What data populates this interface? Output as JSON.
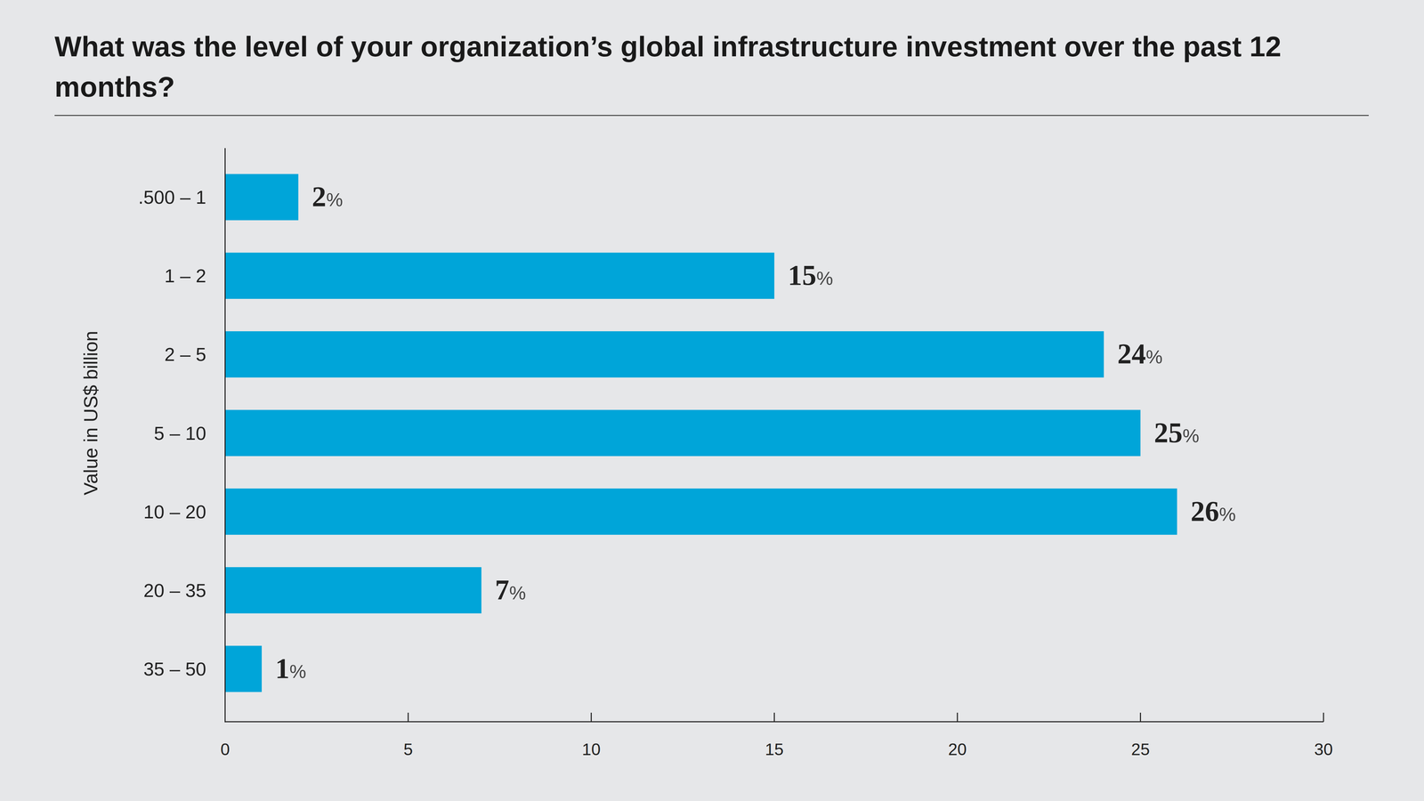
{
  "chart_data": {
    "type": "bar",
    "orientation": "horizontal",
    "title": "What was the level of your organization’s global infrastructure investment over the past 12 months?",
    "y_label": "Value in US$ billion",
    "categories": [
      ".500 – 1",
      "1 – 2",
      "2 – 5",
      "5 – 10",
      "10 – 20",
      "20 – 35",
      "35 – 50"
    ],
    "values": [
      2,
      15,
      24,
      25,
      26,
      7,
      1
    ],
    "value_labels": [
      "2%",
      "15%",
      "24%",
      "25%",
      "26%",
      "7%",
      "1%"
    ],
    "color": "#00a5d9",
    "xlim": [
      0,
      30
    ],
    "xticks": [
      0,
      5,
      10,
      15,
      20,
      25,
      30
    ],
    "grid": false,
    "data_labels": true
  }
}
